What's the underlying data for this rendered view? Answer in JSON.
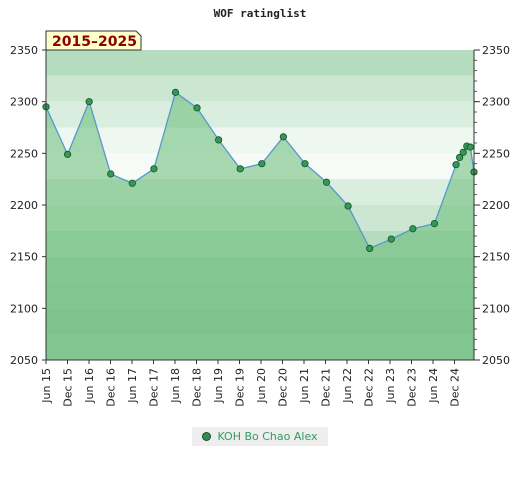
{
  "chart_data": {
    "type": "area",
    "title": "WOF ratinglist",
    "badge": "2015–2025",
    "ylim": [
      2050,
      2350
    ],
    "yticks": [
      2050,
      2100,
      2150,
      2200,
      2250,
      2300,
      2350
    ],
    "xticks": [
      "Jun 15",
      "Dec 15",
      "Jun 16",
      "Dec 16",
      "Jun 17",
      "Dec 17",
      "Jun 18",
      "Dec 18",
      "Jun 19",
      "Dec 19",
      "Jun 20",
      "Dec 20",
      "Jun 21",
      "Dec 21",
      "Jun 22",
      "Dec 22",
      "Jun 23",
      "Dec 23",
      "Jun 24",
      "Dec 24"
    ],
    "series": [
      {
        "name": "KOH Bo Chao Alex",
        "points": [
          {
            "x": "2015-06",
            "y": 2295
          },
          {
            "x": "2015-12",
            "y": 2249
          },
          {
            "x": "2016-06",
            "y": 2300
          },
          {
            "x": "2016-12",
            "y": 2230
          },
          {
            "x": "2017-06",
            "y": 2221
          },
          {
            "x": "2017-12",
            "y": 2235
          },
          {
            "x": "2018-06",
            "y": 2309
          },
          {
            "x": "2018-12",
            "y": 2294
          },
          {
            "x": "2019-06",
            "y": 2263
          },
          {
            "x": "2019-12",
            "y": 2235
          },
          {
            "x": "2020-06",
            "y": 2240
          },
          {
            "x": "2020-12",
            "y": 2266
          },
          {
            "x": "2021-06",
            "y": 2240
          },
          {
            "x": "2021-12",
            "y": 2222
          },
          {
            "x": "2022-06",
            "y": 2199
          },
          {
            "x": "2022-12",
            "y": 2158
          },
          {
            "x": "2023-06",
            "y": 2167
          },
          {
            "x": "2023-12",
            "y": 2177
          },
          {
            "x": "2024-06",
            "y": 2182
          },
          {
            "x": "2024-12",
            "y": 2239
          },
          {
            "x": "2025-01",
            "y": 2246
          },
          {
            "x": "2025-02",
            "y": 2251
          },
          {
            "x": "2025-03",
            "y": 2257
          },
          {
            "x": "2025-04",
            "y": 2256
          },
          {
            "x": "2025-05",
            "y": 2232
          }
        ]
      }
    ],
    "grid": true,
    "legend_position": "bottom",
    "colors": {
      "line": "#5599cc",
      "area": "#66bb77",
      "marker": "#339955",
      "legend_text": "#339966",
      "badge_bg": "#ffffcc",
      "badge_text": "#8b0000"
    }
  }
}
